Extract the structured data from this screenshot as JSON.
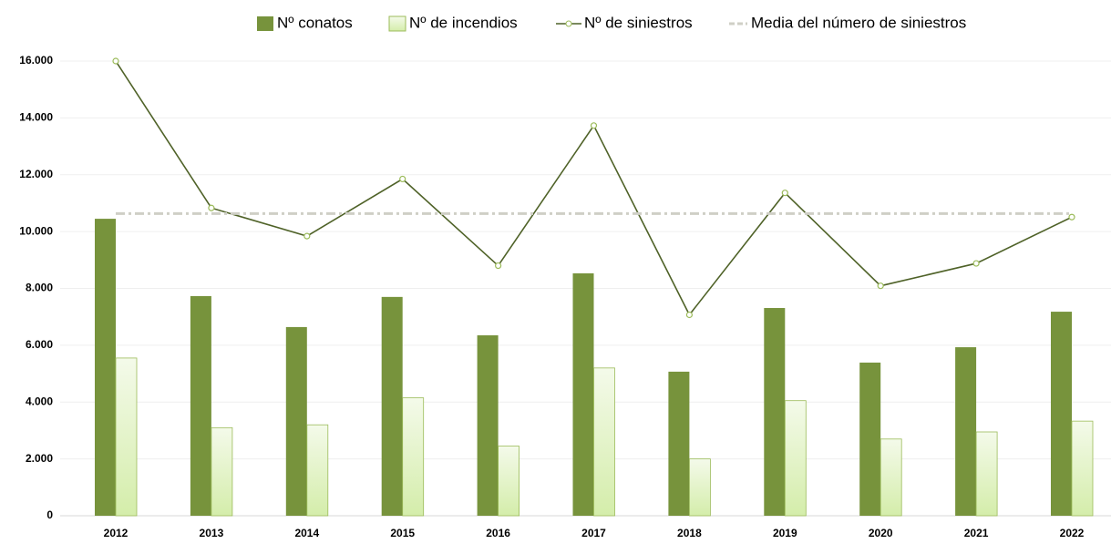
{
  "chart_data": {
    "type": "bar",
    "categories": [
      "2012",
      "2013",
      "2014",
      "2015",
      "2016",
      "2017",
      "2018",
      "2019",
      "2020",
      "2021",
      "2022"
    ],
    "series": [
      {
        "name": "Nº conatos",
        "type": "bar",
        "color": "#77933c",
        "values": [
          10450,
          7730,
          6640,
          7700,
          6350,
          8530,
          5070,
          7310,
          5390,
          5930,
          7180
        ]
      },
      {
        "name": "Nº de incendios",
        "type": "bar",
        "color": "#e4f3c8",
        "values": [
          5550,
          3100,
          3200,
          4150,
          2450,
          5200,
          2000,
          4050,
          2700,
          2950,
          3330
        ]
      },
      {
        "name": "Nº de siniestros",
        "type": "line",
        "color": "#4f6228",
        "values": [
          16000,
          10830,
          9840,
          11850,
          8800,
          13730,
          7070,
          11360,
          8090,
          8880,
          10510
        ]
      },
      {
        "name": "Media del número de siniestros",
        "type": "dashed",
        "color": "#cfcfc6",
        "values": [
          10633,
          10633,
          10633,
          10633,
          10633,
          10633,
          10633,
          10633,
          10633,
          10633,
          10633
        ]
      }
    ],
    "ylim": [
      0,
      16000
    ],
    "yticks": [
      0,
      {
        "value": 2000,
        "label": "2.000"
      },
      {
        "value": 4000,
        "label": "4.000"
      },
      {
        "value": 6000,
        "label": "6.000"
      },
      {
        "value": 8000,
        "label": "8.000"
      },
      {
        "value": 10000,
        "label": "10.000"
      },
      {
        "value": 12000,
        "label": "12.000"
      },
      {
        "value": 14000,
        "label": "14.000"
      },
      {
        "value": 16000,
        "label": "16.000"
      }
    ],
    "grid": true,
    "legend": "top"
  }
}
